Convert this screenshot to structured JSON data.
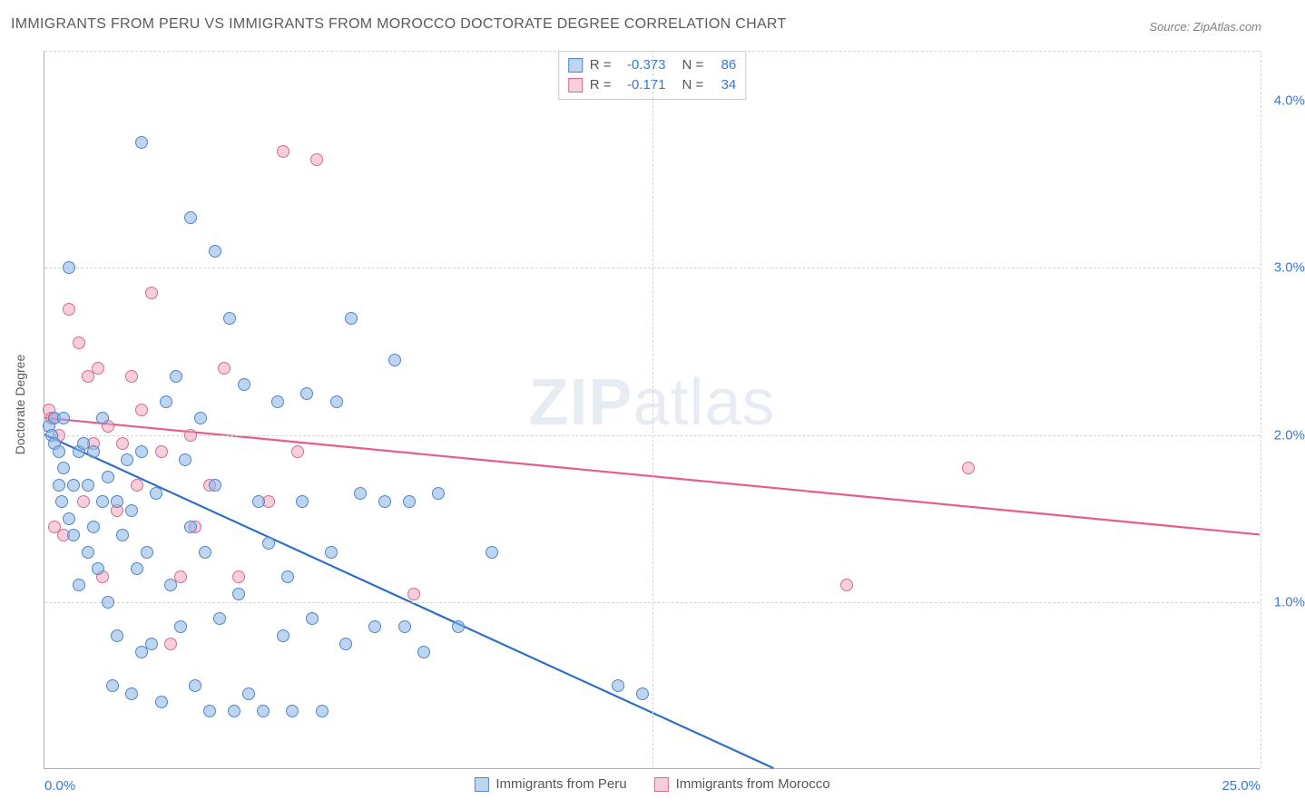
{
  "title": "IMMIGRANTS FROM PERU VS IMMIGRANTS FROM MOROCCO DOCTORATE DEGREE CORRELATION CHART",
  "source": "Source: ZipAtlas.com",
  "y_axis_title": "Doctorate Degree",
  "watermark_a": "ZIP",
  "watermark_b": "atlas",
  "chart": {
    "type": "scatter",
    "background_color": "#ffffff",
    "grid_color": "#d3d3d3",
    "axis_color": "#b0b0b0",
    "tick_color": "#3678d8",
    "tick_fontsize": 15,
    "title_color": "#5a5a5a",
    "title_fontsize": 16,
    "xlim": [
      0,
      25
    ],
    "ylim": [
      0,
      4.3
    ],
    "x_ticks": [
      {
        "v": 0,
        "label": "0.0%"
      },
      {
        "v": 25,
        "label": "25.0%"
      }
    ],
    "y_ticks": [
      {
        "v": 1,
        "label": "1.0%"
      },
      {
        "v": 2,
        "label": "2.0%"
      },
      {
        "v": 3,
        "label": "3.0%"
      },
      {
        "v": 4,
        "label": "4.0%"
      }
    ],
    "y_gridlines": [
      1,
      2,
      3,
      4.3
    ],
    "x_gridlines": [
      12.5,
      25
    ],
    "marker_radius": 7,
    "marker_border_width": 1,
    "series": {
      "peru": {
        "label": "Immigrants from Peru",
        "fill": "rgba(137,179,231,0.55)",
        "stroke": "#4f87c7",
        "line_color": "#2e6fc4",
        "line_width": 2.2,
        "trend": {
          "x1": 0,
          "y1": 2.0,
          "x2": 15,
          "y2": 0
        },
        "R": "-0.373",
        "N": "86",
        "points": [
          [
            0.1,
            2.05
          ],
          [
            0.15,
            2.0
          ],
          [
            0.2,
            1.95
          ],
          [
            0.2,
            2.1
          ],
          [
            0.3,
            1.9
          ],
          [
            0.3,
            1.7
          ],
          [
            0.35,
            1.6
          ],
          [
            0.4,
            2.1
          ],
          [
            0.4,
            1.8
          ],
          [
            0.5,
            3.0
          ],
          [
            0.5,
            1.5
          ],
          [
            0.6,
            1.7
          ],
          [
            0.6,
            1.4
          ],
          [
            0.7,
            1.1
          ],
          [
            0.7,
            1.9
          ],
          [
            0.8,
            1.95
          ],
          [
            0.9,
            1.7
          ],
          [
            0.9,
            1.3
          ],
          [
            1.0,
            1.9
          ],
          [
            1.0,
            1.45
          ],
          [
            1.1,
            1.2
          ],
          [
            1.2,
            2.1
          ],
          [
            1.2,
            1.6
          ],
          [
            1.3,
            1.75
          ],
          [
            1.3,
            1.0
          ],
          [
            1.4,
            0.5
          ],
          [
            1.5,
            1.6
          ],
          [
            1.5,
            0.8
          ],
          [
            1.6,
            1.4
          ],
          [
            1.7,
            1.85
          ],
          [
            1.8,
            1.55
          ],
          [
            1.8,
            0.45
          ],
          [
            1.9,
            1.2
          ],
          [
            2.0,
            3.75
          ],
          [
            2.0,
            1.9
          ],
          [
            2.0,
            0.7
          ],
          [
            2.1,
            1.3
          ],
          [
            2.2,
            0.75
          ],
          [
            2.3,
            1.65
          ],
          [
            2.4,
            0.4
          ],
          [
            2.5,
            2.2
          ],
          [
            2.6,
            1.1
          ],
          [
            2.7,
            2.35
          ],
          [
            2.8,
            0.85
          ],
          [
            2.9,
            1.85
          ],
          [
            3.0,
            3.3
          ],
          [
            3.0,
            1.45
          ],
          [
            3.1,
            0.5
          ],
          [
            3.2,
            2.1
          ],
          [
            3.3,
            1.3
          ],
          [
            3.4,
            0.35
          ],
          [
            3.5,
            3.1
          ],
          [
            3.5,
            1.7
          ],
          [
            3.6,
            0.9
          ],
          [
            3.8,
            2.7
          ],
          [
            3.9,
            0.35
          ],
          [
            4.0,
            1.05
          ],
          [
            4.1,
            2.3
          ],
          [
            4.2,
            0.45
          ],
          [
            4.4,
            1.6
          ],
          [
            4.5,
            0.35
          ],
          [
            4.6,
            1.35
          ],
          [
            4.8,
            2.2
          ],
          [
            4.9,
            0.8
          ],
          [
            5.0,
            1.15
          ],
          [
            5.1,
            0.35
          ],
          [
            5.3,
            1.6
          ],
          [
            5.4,
            2.25
          ],
          [
            5.5,
            0.9
          ],
          [
            5.7,
            0.35
          ],
          [
            5.9,
            1.3
          ],
          [
            6.0,
            2.2
          ],
          [
            6.2,
            0.75
          ],
          [
            6.3,
            2.7
          ],
          [
            6.5,
            1.65
          ],
          [
            6.8,
            0.85
          ],
          [
            7.0,
            1.6
          ],
          [
            7.2,
            2.45
          ],
          [
            7.4,
            0.85
          ],
          [
            7.5,
            1.6
          ],
          [
            7.8,
            0.7
          ],
          [
            8.1,
            1.65
          ],
          [
            8.5,
            0.85
          ],
          [
            9.2,
            1.3
          ],
          [
            11.8,
            0.5
          ],
          [
            12.3,
            0.45
          ]
        ]
      },
      "morocco": {
        "label": "Immigrants from Morocco",
        "fill": "rgba(240,160,185,0.5)",
        "stroke": "#d86a91",
        "line_color": "#e85d88",
        "line_width": 2.2,
        "trend": {
          "x1": 0,
          "y1": 2.1,
          "x2": 25,
          "y2": 1.4
        },
        "R": "-0.171",
        "N": "34",
        "points": [
          [
            0.1,
            2.15
          ],
          [
            0.15,
            2.1
          ],
          [
            0.2,
            1.45
          ],
          [
            0.3,
            2.0
          ],
          [
            0.4,
            1.4
          ],
          [
            0.5,
            2.75
          ],
          [
            0.7,
            2.55
          ],
          [
            0.8,
            1.6
          ],
          [
            0.9,
            2.35
          ],
          [
            1.0,
            1.95
          ],
          [
            1.1,
            2.4
          ],
          [
            1.2,
            1.15
          ],
          [
            1.3,
            2.05
          ],
          [
            1.5,
            1.55
          ],
          [
            1.6,
            1.95
          ],
          [
            1.8,
            2.35
          ],
          [
            1.9,
            1.7
          ],
          [
            2.0,
            2.15
          ],
          [
            2.2,
            2.85
          ],
          [
            2.4,
            1.9
          ],
          [
            2.6,
            0.75
          ],
          [
            2.8,
            1.15
          ],
          [
            3.0,
            2.0
          ],
          [
            3.1,
            1.45
          ],
          [
            3.4,
            1.7
          ],
          [
            3.7,
            2.4
          ],
          [
            4.0,
            1.15
          ],
          [
            4.6,
            1.6
          ],
          [
            4.9,
            3.7
          ],
          [
            5.2,
            1.9
          ],
          [
            5.6,
            3.65
          ],
          [
            7.6,
            1.05
          ],
          [
            16.5,
            1.1
          ],
          [
            19.0,
            1.8
          ]
        ]
      }
    }
  },
  "legend_top": {
    "R_label": "R =",
    "N_label": "N ="
  },
  "legend_bottom_swatches": true
}
